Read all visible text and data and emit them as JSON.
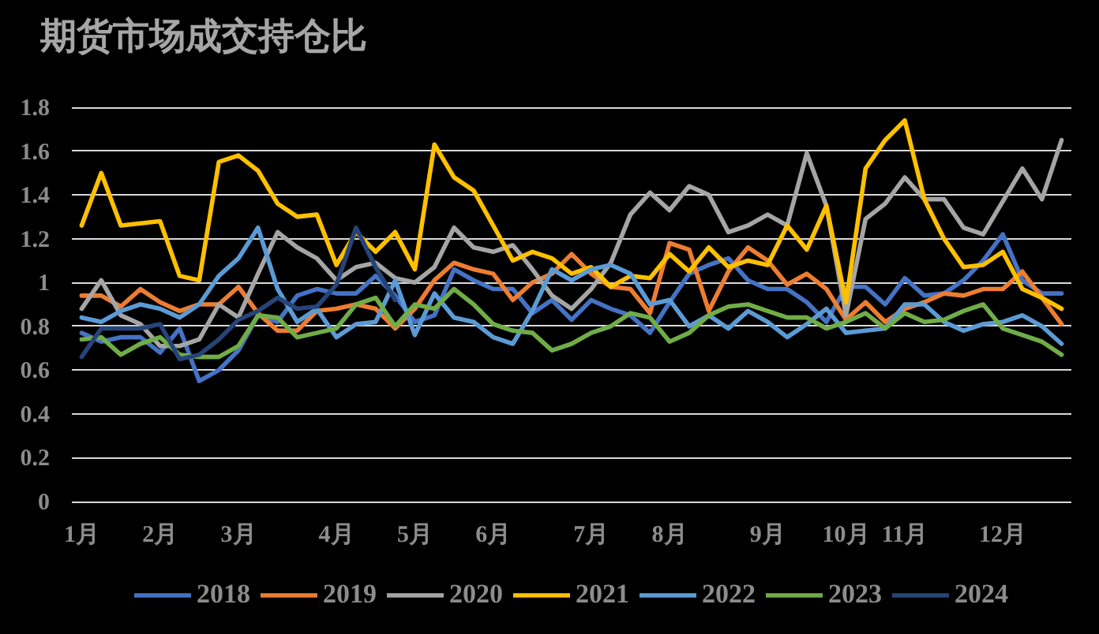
{
  "chart_data": {
    "type": "line",
    "title": "期货市场成交持仓比",
    "categories": [
      "1月",
      null,
      null,
      null,
      "2月",
      null,
      null,
      null,
      "3月",
      null,
      null,
      null,
      null,
      "4月",
      null,
      null,
      null,
      "5月",
      null,
      null,
      null,
      "6月",
      null,
      null,
      null,
      null,
      "7月",
      null,
      null,
      null,
      "8月",
      null,
      null,
      null,
      null,
      "9月",
      null,
      null,
      null,
      "10月",
      null,
      null,
      "11月",
      null,
      null,
      null,
      null,
      "12月",
      null,
      null,
      null
    ],
    "series": [
      {
        "name": "2018",
        "color": "#4472c4",
        "values": [
          0.77,
          0.73,
          0.75,
          0.75,
          0.68,
          0.79,
          0.55,
          0.6,
          0.69,
          0.85,
          0.82,
          0.94,
          0.97,
          0.95,
          0.95,
          1.03,
          0.94,
          0.82,
          0.85,
          1.06,
          1.01,
          0.97,
          0.97,
          0.86,
          0.92,
          0.83,
          0.92,
          0.88,
          0.85,
          0.77,
          0.91,
          1.04,
          1.08,
          1.11,
          1.01,
          0.97,
          0.97,
          0.91,
          0.82,
          0.98,
          0.98,
          0.9,
          1.02,
          0.94,
          0.95,
          1.01,
          1.1,
          1.22,
          1.01,
          0.95,
          0.95
        ]
      },
      {
        "name": "2019",
        "color": "#ed7d31",
        "values": [
          0.94,
          0.94,
          0.89,
          0.97,
          0.91,
          0.87,
          0.9,
          0.9,
          0.98,
          0.86,
          0.78,
          0.78,
          0.87,
          0.88,
          0.9,
          0.88,
          0.79,
          0.88,
          1.01,
          1.09,
          1.06,
          1.04,
          0.92,
          1.0,
          1.04,
          1.13,
          1.04,
          0.98,
          0.97,
          0.86,
          1.18,
          1.15,
          0.87,
          1.05,
          1.16,
          1.1,
          0.99,
          1.04,
          0.97,
          0.83,
          0.91,
          0.82,
          0.88,
          0.91,
          0.95,
          0.94,
          0.97,
          0.97,
          1.05,
          0.93,
          0.81
        ]
      },
      {
        "name": "2020",
        "color": "#a5a5a5",
        "values": [
          0.88,
          1.01,
          0.85,
          0.81,
          0.71,
          0.71,
          0.74,
          0.9,
          0.84,
          1.04,
          1.23,
          1.16,
          1.11,
          1.01,
          1.07,
          1.09,
          1.02,
          1.0,
          1.07,
          1.25,
          1.16,
          1.14,
          1.17,
          1.06,
          0.94,
          0.88,
          0.97,
          1.09,
          1.31,
          1.41,
          1.33,
          1.44,
          1.4,
          1.23,
          1.26,
          1.31,
          1.26,
          1.59,
          1.35,
          0.85,
          1.29,
          1.36,
          1.48,
          1.38,
          1.38,
          1.25,
          1.22,
          1.37,
          1.52,
          1.38,
          1.65
        ]
      },
      {
        "name": "2021",
        "color": "#ffc000",
        "values": [
          1.26,
          1.5,
          1.26,
          1.27,
          1.28,
          1.03,
          1.01,
          1.55,
          1.58,
          1.51,
          1.36,
          1.3,
          1.31,
          1.08,
          1.23,
          1.14,
          1.23,
          1.06,
          1.63,
          1.48,
          1.42,
          1.26,
          1.1,
          1.14,
          1.11,
          1.04,
          1.07,
          0.98,
          1.03,
          1.02,
          1.13,
          1.05,
          1.16,
          1.07,
          1.1,
          1.08,
          1.26,
          1.15,
          1.35,
          0.91,
          1.52,
          1.65,
          1.74,
          1.38,
          1.2,
          1.07,
          1.08,
          1.14,
          0.97,
          0.93,
          0.88
        ]
      },
      {
        "name": "2022",
        "color": "#5b9bd5",
        "values": [
          0.84,
          0.82,
          0.87,
          0.9,
          0.88,
          0.84,
          0.9,
          1.03,
          1.11,
          1.25,
          0.97,
          0.82,
          0.88,
          0.75,
          0.81,
          0.82,
          1.01,
          0.76,
          0.95,
          0.84,
          0.82,
          0.75,
          0.72,
          0.87,
          1.06,
          1.01,
          1.06,
          1.08,
          1.04,
          0.9,
          0.92,
          0.8,
          0.85,
          0.79,
          0.87,
          0.82,
          0.75,
          0.81,
          0.88,
          0.77,
          0.78,
          0.79,
          0.9,
          0.9,
          0.82,
          0.78,
          0.81,
          0.82,
          0.85,
          0.8,
          0.72
        ]
      },
      {
        "name": "2023",
        "color": "#70ad47",
        "values": [
          0.74,
          0.75,
          0.67,
          0.72,
          0.75,
          0.67,
          0.66,
          0.66,
          0.71,
          0.85,
          0.84,
          0.75,
          0.77,
          0.79,
          0.9,
          0.93,
          0.8,
          0.9,
          0.88,
          0.97,
          0.9,
          0.81,
          0.78,
          0.77,
          0.69,
          0.72,
          0.77,
          0.8,
          0.86,
          0.84,
          0.73,
          0.77,
          0.85,
          0.89,
          0.9,
          0.87,
          0.84,
          0.84,
          0.79,
          0.82,
          0.86,
          0.79,
          0.86,
          0.82,
          0.83,
          0.87,
          0.9,
          0.79,
          0.76,
          0.73,
          0.67
        ]
      },
      {
        "name": "2024",
        "color": "#264478",
        "values": [
          0.66,
          0.79,
          0.79,
          0.79,
          0.81,
          0.65,
          0.67,
          0.74,
          0.83,
          0.87,
          0.93,
          0.88,
          0.89,
          0.99,
          1.25,
          1.07,
          0.92,
          null,
          null,
          null,
          null,
          null,
          null,
          null,
          null,
          null,
          null,
          null,
          null,
          null,
          null,
          null,
          null,
          null,
          null,
          null,
          null,
          null,
          null,
          null,
          null,
          null,
          null,
          null,
          null,
          null,
          null,
          null,
          null,
          null,
          null
        ]
      }
    ],
    "ylim": [
      0,
      1.8
    ],
    "yticks": [
      0,
      0.2,
      0.4,
      0.6,
      0.8,
      1,
      1.2,
      1.4,
      1.6,
      1.8
    ],
    "grid": "y",
    "legend": "bottom"
  }
}
